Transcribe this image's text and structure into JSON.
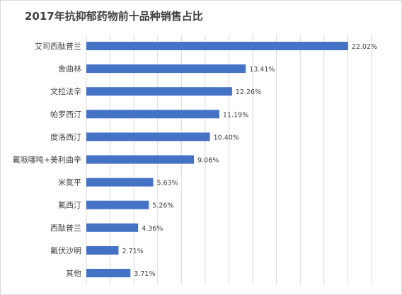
{
  "chart_data": {
    "type": "bar",
    "orientation": "horizontal",
    "title": "2017年抗抑郁药物前十品种销售占比",
    "xlabel": "",
    "ylabel": "",
    "categories": [
      "艾司西酞普兰",
      "舍曲林",
      "文拉法辛",
      "帕罗西汀",
      "度洛西汀",
      "氟哌噻吨+美利曲辛",
      "米氮平",
      "氟西汀",
      "西酞普兰",
      "氟伏沙明",
      "其他"
    ],
    "values": [
      22.02,
      13.41,
      12.26,
      11.19,
      10.4,
      9.06,
      5.63,
      5.26,
      4.36,
      2.71,
      3.71
    ],
    "value_labels": [
      "22.02%",
      "13.41%",
      "12.26%",
      "11.19%",
      "10.40%",
      "9.06%",
      "5.63%",
      "5.26%",
      "4.36%",
      "2.71%",
      "3.71%"
    ],
    "unit": "%",
    "xlim": [
      0,
      24
    ],
    "grid": "vertical",
    "legend": "none",
    "bar_color": "#4472C4",
    "grid_color": "#d9d9d9",
    "text_color": "#404040"
  }
}
